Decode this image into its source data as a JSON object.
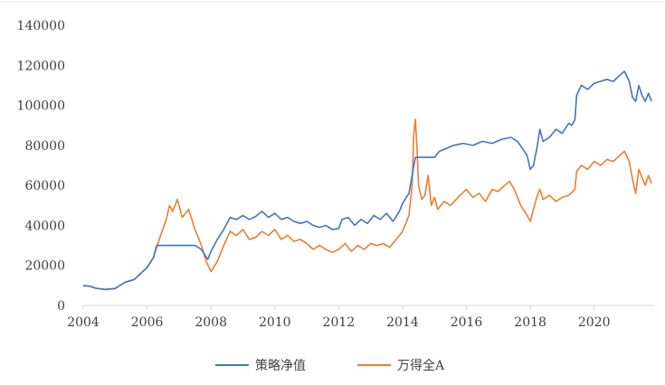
{
  "chart_data": {
    "type": "line",
    "title": "",
    "xlabel": "",
    "ylabel": "",
    "xlim": [
      2004,
      2021.85
    ],
    "ylim": [
      0,
      140000
    ],
    "x_ticks": [
      2004,
      2006,
      2008,
      2010,
      2012,
      2014,
      2016,
      2018,
      2020
    ],
    "x_tick_labels": [
      "2004",
      "2006",
      "2008",
      "2010",
      "2012",
      "2014",
      "2016",
      "2018",
      "2020"
    ],
    "y_ticks": [
      0,
      20000,
      40000,
      60000,
      80000,
      100000,
      120000,
      140000
    ],
    "y_tick_labels": [
      "0",
      "20000",
      "40000",
      "60000",
      "80000",
      "100000",
      "120000",
      "140000"
    ],
    "grid": false,
    "legend_position": "bottom",
    "colors": {
      "strategy": "#4472C4",
      "index": "#ED7D31",
      "axis": "#d9d9d9",
      "text": "#404040"
    },
    "series": [
      {
        "name": "策略净值",
        "points": [
          [
            2004.0,
            10000
          ],
          [
            2004.2,
            9600
          ],
          [
            2004.4,
            8600
          ],
          [
            2004.7,
            8000
          ],
          [
            2005.0,
            8500
          ],
          [
            2005.3,
            11500
          ],
          [
            2005.6,
            13000
          ],
          [
            2005.8,
            16000
          ],
          [
            2006.0,
            19000
          ],
          [
            2006.2,
            24000
          ],
          [
            2006.3,
            30000
          ],
          [
            2006.6,
            30000
          ],
          [
            2007.0,
            30000
          ],
          [
            2007.5,
            30000
          ],
          [
            2007.7,
            28000
          ],
          [
            2007.9,
            23000
          ],
          [
            2008.0,
            27000
          ],
          [
            2008.2,
            33000
          ],
          [
            2008.4,
            38000
          ],
          [
            2008.6,
            44000
          ],
          [
            2008.8,
            43000
          ],
          [
            2009.0,
            45000
          ],
          [
            2009.2,
            43000
          ],
          [
            2009.4,
            44500
          ],
          [
            2009.6,
            47000
          ],
          [
            2009.8,
            44000
          ],
          [
            2010.0,
            46000
          ],
          [
            2010.2,
            43000
          ],
          [
            2010.4,
            44000
          ],
          [
            2010.6,
            42000
          ],
          [
            2010.8,
            41000
          ],
          [
            2011.0,
            42000
          ],
          [
            2011.2,
            40000
          ],
          [
            2011.4,
            39000
          ],
          [
            2011.6,
            40000
          ],
          [
            2011.8,
            38000
          ],
          [
            2012.0,
            38500
          ],
          [
            2012.1,
            43000
          ],
          [
            2012.3,
            44000
          ],
          [
            2012.5,
            40000
          ],
          [
            2012.7,
            43000
          ],
          [
            2012.9,
            41000
          ],
          [
            2013.1,
            45000
          ],
          [
            2013.3,
            43000
          ],
          [
            2013.5,
            46000
          ],
          [
            2013.7,
            42000
          ],
          [
            2013.9,
            47000
          ],
          [
            2014.0,
            51000
          ],
          [
            2014.2,
            56000
          ],
          [
            2014.3,
            65000
          ],
          [
            2014.4,
            74000
          ],
          [
            2014.6,
            74000
          ],
          [
            2014.8,
            74000
          ],
          [
            2015.0,
            74000
          ],
          [
            2015.15,
            77000
          ],
          [
            2015.3,
            78000
          ],
          [
            2015.6,
            80000
          ],
          [
            2015.9,
            81000
          ],
          [
            2016.2,
            80000
          ],
          [
            2016.5,
            82000
          ],
          [
            2016.8,
            81000
          ],
          [
            2017.1,
            83000
          ],
          [
            2017.4,
            84000
          ],
          [
            2017.6,
            82000
          ],
          [
            2017.9,
            75000
          ],
          [
            2018.0,
            68000
          ],
          [
            2018.1,
            70000
          ],
          [
            2018.2,
            78000
          ],
          [
            2018.3,
            88000
          ],
          [
            2018.4,
            82000
          ],
          [
            2018.6,
            84000
          ],
          [
            2018.8,
            88000
          ],
          [
            2019.0,
            86000
          ],
          [
            2019.2,
            91000
          ],
          [
            2019.3,
            90000
          ],
          [
            2019.4,
            93000
          ],
          [
            2019.45,
            105000
          ],
          [
            2019.6,
            110000
          ],
          [
            2019.8,
            108000
          ],
          [
            2020.0,
            111000
          ],
          [
            2020.2,
            112000
          ],
          [
            2020.4,
            113000
          ],
          [
            2020.6,
            112000
          ],
          [
            2020.8,
            115000
          ],
          [
            2020.95,
            117000
          ],
          [
            2021.1,
            112000
          ],
          [
            2021.2,
            104000
          ],
          [
            2021.3,
            102000
          ],
          [
            2021.4,
            110000
          ],
          [
            2021.5,
            105000
          ],
          [
            2021.6,
            102000
          ],
          [
            2021.7,
            106000
          ],
          [
            2021.8,
            102000
          ]
        ]
      },
      {
        "name": "万得全A",
        "points": [
          [
            2004.0,
            10000
          ],
          [
            2004.2,
            9600
          ],
          [
            2004.4,
            8600
          ],
          [
            2004.7,
            8000
          ],
          [
            2005.0,
            8500
          ],
          [
            2005.3,
            11500
          ],
          [
            2005.6,
            13000
          ],
          [
            2005.8,
            16000
          ],
          [
            2006.0,
            19000
          ],
          [
            2006.2,
            24000
          ],
          [
            2006.4,
            34000
          ],
          [
            2006.6,
            43000
          ],
          [
            2006.7,
            50000
          ],
          [
            2006.8,
            47000
          ],
          [
            2006.95,
            53000
          ],
          [
            2007.1,
            44000
          ],
          [
            2007.3,
            48000
          ],
          [
            2007.5,
            38000
          ],
          [
            2007.7,
            30000
          ],
          [
            2007.85,
            22000
          ],
          [
            2008.0,
            17000
          ],
          [
            2008.2,
            22000
          ],
          [
            2008.4,
            30000
          ],
          [
            2008.6,
            37000
          ],
          [
            2008.8,
            35000
          ],
          [
            2009.0,
            38000
          ],
          [
            2009.2,
            33000
          ],
          [
            2009.4,
            34000
          ],
          [
            2009.6,
            37000
          ],
          [
            2009.8,
            35000
          ],
          [
            2010.0,
            38000
          ],
          [
            2010.2,
            33000
          ],
          [
            2010.4,
            35000
          ],
          [
            2010.6,
            32000
          ],
          [
            2010.8,
            33000
          ],
          [
            2011.0,
            31000
          ],
          [
            2011.2,
            28000
          ],
          [
            2011.4,
            30000
          ],
          [
            2011.6,
            28000
          ],
          [
            2011.8,
            26500
          ],
          [
            2012.0,
            28000
          ],
          [
            2012.2,
            31000
          ],
          [
            2012.4,
            27000
          ],
          [
            2012.6,
            30000
          ],
          [
            2012.8,
            28000
          ],
          [
            2013.0,
            31000
          ],
          [
            2013.2,
            30000
          ],
          [
            2013.4,
            31000
          ],
          [
            2013.6,
            29000
          ],
          [
            2013.8,
            33000
          ],
          [
            2014.0,
            37000
          ],
          [
            2014.2,
            45000
          ],
          [
            2014.3,
            60000
          ],
          [
            2014.35,
            85000
          ],
          [
            2014.4,
            93000
          ],
          [
            2014.45,
            80000
          ],
          [
            2014.5,
            60000
          ],
          [
            2014.6,
            53000
          ],
          [
            2014.7,
            55000
          ],
          [
            2014.8,
            65000
          ],
          [
            2014.9,
            50000
          ],
          [
            2015.0,
            54000
          ],
          [
            2015.1,
            48000
          ],
          [
            2015.3,
            52000
          ],
          [
            2015.5,
            50000
          ],
          [
            2015.8,
            55000
          ],
          [
            2016.0,
            58000
          ],
          [
            2016.2,
            54000
          ],
          [
            2016.4,
            56000
          ],
          [
            2016.6,
            52000
          ],
          [
            2016.8,
            58000
          ],
          [
            2017.0,
            57000
          ],
          [
            2017.2,
            60000
          ],
          [
            2017.35,
            62000
          ],
          [
            2017.5,
            58000
          ],
          [
            2017.7,
            50000
          ],
          [
            2017.9,
            45000
          ],
          [
            2018.0,
            42000
          ],
          [
            2018.1,
            48000
          ],
          [
            2018.2,
            54000
          ],
          [
            2018.3,
            58000
          ],
          [
            2018.4,
            53000
          ],
          [
            2018.6,
            55000
          ],
          [
            2018.8,
            52000
          ],
          [
            2019.0,
            54000
          ],
          [
            2019.2,
            55000
          ],
          [
            2019.4,
            58000
          ],
          [
            2019.45,
            67000
          ],
          [
            2019.6,
            70000
          ],
          [
            2019.8,
            68000
          ],
          [
            2020.0,
            72000
          ],
          [
            2020.2,
            70000
          ],
          [
            2020.4,
            73000
          ],
          [
            2020.6,
            72000
          ],
          [
            2020.8,
            75000
          ],
          [
            2020.95,
            77000
          ],
          [
            2021.1,
            72000
          ],
          [
            2021.2,
            63000
          ],
          [
            2021.3,
            56000
          ],
          [
            2021.4,
            68000
          ],
          [
            2021.5,
            64000
          ],
          [
            2021.6,
            60000
          ],
          [
            2021.7,
            65000
          ],
          [
            2021.8,
            61000
          ]
        ]
      }
    ]
  }
}
